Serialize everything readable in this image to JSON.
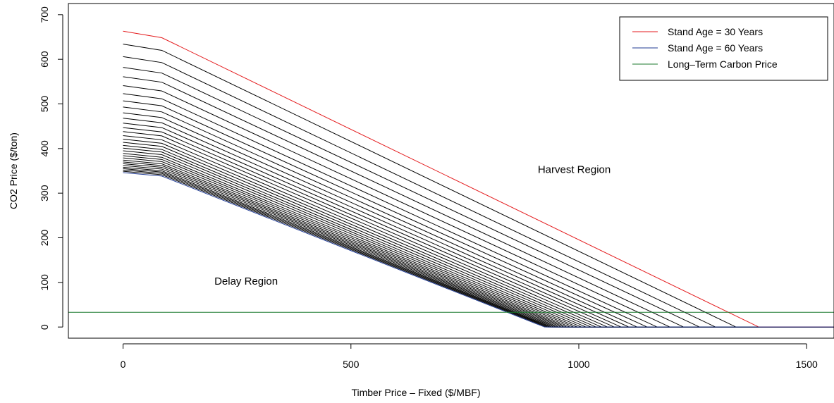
{
  "chart_data": {
    "type": "line",
    "title": "",
    "xlabel": "Timber Price – Fixed ($/MBF)",
    "ylabel": "CO2 Price ($/ton)",
    "xlim": [
      -120,
      1560
    ],
    "ylim": [
      -25,
      725
    ],
    "xticks": [
      0,
      500,
      1000,
      1500
    ],
    "yticks": [
      0,
      100,
      200,
      300,
      400,
      500,
      600,
      700
    ],
    "legend_position": "top-right",
    "legend": [
      {
        "label": "Stand Age = 30 Years",
        "color": "#e41a1c"
      },
      {
        "label": "Stand Age = 60 Years",
        "color": "#1f3a93"
      },
      {
        "label": "Long–Term Carbon Price",
        "color": "#1b7a2e"
      }
    ],
    "annotations": [
      {
        "text": "Harvest Region",
        "x": 990,
        "y": 345
      },
      {
        "text": "Delay Region",
        "x": 270,
        "y": 95
      }
    ],
    "long_term_carbon_price": 33,
    "x_max": 1560,
    "x_knot": 85,
    "series": [
      {
        "name": "Stand Age = 30 Years",
        "color": "#e41a1c",
        "y0": 663,
        "x_zero": 1395
      },
      {
        "color": "#000000",
        "y0": 634,
        "x_zero": 1345
      },
      {
        "color": "#000000",
        "y0": 606,
        "x_zero": 1300
      },
      {
        "color": "#000000",
        "y0": 582,
        "x_zero": 1265
      },
      {
        "color": "#000000",
        "y0": 561,
        "x_zero": 1230
      },
      {
        "color": "#000000",
        "y0": 541,
        "x_zero": 1200
      },
      {
        "color": "#000000",
        "y0": 523,
        "x_zero": 1172
      },
      {
        "color": "#000000",
        "y0": 507,
        "x_zero": 1150
      },
      {
        "color": "#000000",
        "y0": 493,
        "x_zero": 1128
      },
      {
        "color": "#000000",
        "y0": 480,
        "x_zero": 1110
      },
      {
        "color": "#000000",
        "y0": 468,
        "x_zero": 1093
      },
      {
        "color": "#000000",
        "y0": 457,
        "x_zero": 1078
      },
      {
        "color": "#000000",
        "y0": 447,
        "x_zero": 1063
      },
      {
        "color": "#000000",
        "y0": 438,
        "x_zero": 1050
      },
      {
        "color": "#000000",
        "y0": 429,
        "x_zero": 1038
      },
      {
        "color": "#000000",
        "y0": 421,
        "x_zero": 1027
      },
      {
        "color": "#000000",
        "y0": 414,
        "x_zero": 1016
      },
      {
        "color": "#000000",
        "y0": 407,
        "x_zero": 1006
      },
      {
        "color": "#000000",
        "y0": 401,
        "x_zero": 997
      },
      {
        "color": "#000000",
        "y0": 395,
        "x_zero": 989
      },
      {
        "color": "#000000",
        "y0": 389,
        "x_zero": 981
      },
      {
        "color": "#000000",
        "y0": 384,
        "x_zero": 974
      },
      {
        "color": "#000000",
        "y0": 379,
        "x_zero": 968
      },
      {
        "color": "#000000",
        "y0": 374,
        "x_zero": 962
      },
      {
        "color": "#000000",
        "y0": 370,
        "x_zero": 956
      },
      {
        "color": "#000000",
        "y0": 366,
        "x_zero": 951
      },
      {
        "color": "#000000",
        "y0": 362,
        "x_zero": 946
      },
      {
        "color": "#000000",
        "y0": 358,
        "x_zero": 941
      },
      {
        "color": "#000000",
        "y0": 355,
        "x_zero": 937
      },
      {
        "color": "#000000",
        "y0": 352,
        "x_zero": 933
      },
      {
        "color": "#000000",
        "y0": 349,
        "x_zero": 929
      },
      {
        "name": "Stand Age = 60 Years",
        "color": "#1f3a93",
        "y0": 346,
        "x_zero": 925
      }
    ]
  }
}
